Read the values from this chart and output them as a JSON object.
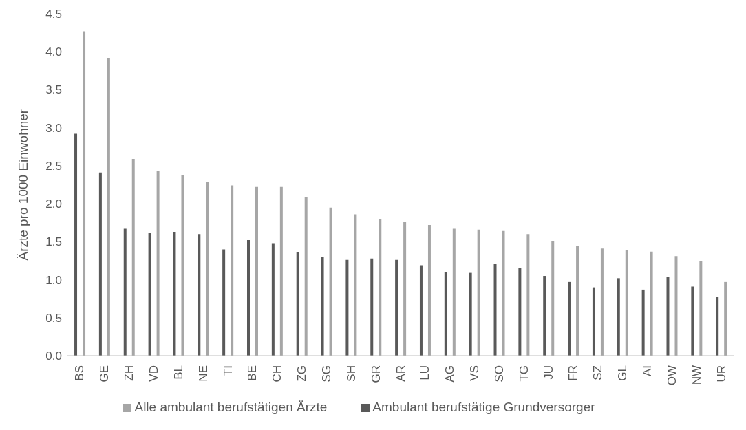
{
  "chart_data": {
    "type": "bar",
    "ylabel": "Ärzte pro 1000 Einwohner",
    "categories": [
      "BS",
      "GE",
      "ZH",
      "VD",
      "BL",
      "NE",
      "TI",
      "BE",
      "CH",
      "ZG",
      "SG",
      "SH",
      "GR",
      "AR",
      "LU",
      "AG",
      "VS",
      "SO",
      "TG",
      "JU",
      "FR",
      "SZ",
      "GL",
      "AI",
      "OW",
      "NW",
      "UR"
    ],
    "series": [
      {
        "name": "Ambulant berufstätige Grundversorger",
        "color": "#595959",
        "values": [
          2.92,
          2.41,
          1.67,
          1.62,
          1.63,
          1.6,
          1.4,
          1.52,
          1.48,
          1.36,
          1.3,
          1.26,
          1.28,
          1.26,
          1.19,
          1.1,
          1.09,
          1.21,
          1.16,
          1.05,
          0.97,
          0.9,
          1.02,
          0.87,
          1.04,
          0.91,
          0.77
        ]
      },
      {
        "name": "Alle ambulant berufstätigen Ärzte",
        "color": "#a6a6a6",
        "values": [
          4.27,
          3.92,
          2.59,
          2.43,
          2.38,
          2.29,
          2.24,
          2.22,
          2.22,
          2.09,
          1.95,
          1.86,
          1.8,
          1.76,
          1.72,
          1.67,
          1.66,
          1.64,
          1.6,
          1.51,
          1.44,
          1.41,
          1.39,
          1.37,
          1.31,
          1.24,
          0.97
        ]
      }
    ],
    "ylim": [
      0,
      4.5
    ],
    "yticks": [
      {
        "value": 0,
        "label": "0.0"
      },
      {
        "value": 0.5,
        "label": "0.5"
      },
      {
        "value": 1,
        "label": "1.0"
      },
      {
        "value": 1.5,
        "label": "1.5"
      },
      {
        "value": 2,
        "label": "2.0"
      },
      {
        "value": 2.5,
        "label": "2.5"
      },
      {
        "value": 3,
        "label": "3.0"
      },
      {
        "value": 3.5,
        "label": "3.5"
      },
      {
        "value": 4,
        "label": "4.0"
      },
      {
        "value": 4.5,
        "label": "4.5"
      }
    ],
    "grid": false,
    "legend": "bottom"
  }
}
